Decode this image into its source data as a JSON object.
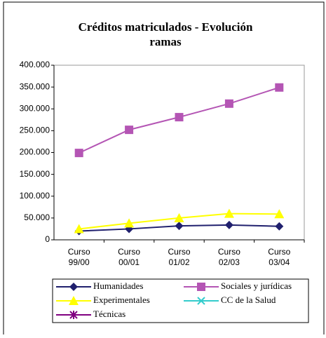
{
  "chart_data": {
    "type": "line",
    "title": "Créditos matriculados - Evolución ramas",
    "categories": [
      "Curso 99/00",
      "Curso 00/01",
      "Curso 01/02",
      "Curso 02/03",
      "Curso 03/04"
    ],
    "series": [
      {
        "name": "Humanidades",
        "color": "#20206e",
        "marker": "diamond",
        "values": [
          20000,
          25000,
          32000,
          34000,
          31000
        ]
      },
      {
        "name": "Sociales y jurídicas",
        "color": "#b455b4",
        "marker": "square",
        "values": [
          199000,
          252000,
          281000,
          312000,
          349000
        ]
      },
      {
        "name": "Experimentales",
        "color": "#ffff00",
        "marker": "triangle",
        "values": [
          25000,
          38000,
          50000,
          60000,
          59000
        ]
      },
      {
        "name": "CC de la Salud",
        "color": "#33cccc",
        "marker": "x",
        "values": [
          null,
          null,
          null,
          null,
          null
        ]
      },
      {
        "name": "Técnicas",
        "color": "#800080",
        "marker": "star",
        "values": [
          null,
          null,
          null,
          null,
          null
        ]
      }
    ],
    "ylim": [
      0,
      400000
    ],
    "yticks": [
      0,
      {
        "value": 50000,
        "label": "50.000"
      },
      {
        "value": 100000,
        "label": "100.000"
      },
      {
        "value": 150000,
        "label": "150.000"
      },
      {
        "value": 200000,
        "label": "200.000"
      },
      {
        "value": 250000,
        "label": "250.000"
      },
      {
        "value": 300000,
        "label": "300.000"
      },
      {
        "value": 350000,
        "label": "350.000"
      },
      {
        "value": 400000,
        "label": "400.000"
      }
    ],
    "grid": false
  }
}
